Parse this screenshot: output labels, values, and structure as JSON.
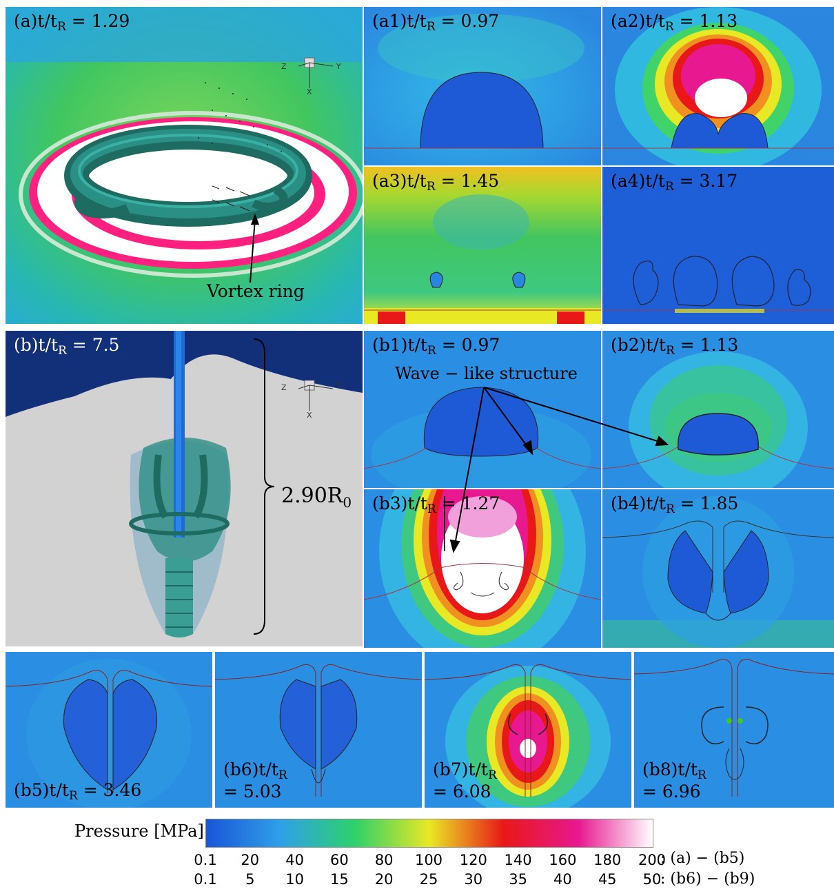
{
  "panels": {
    "a": {
      "prefix": "(a)",
      "tval": "1.29"
    },
    "a1": {
      "prefix": "(a1)",
      "tval": "0.97"
    },
    "a2": {
      "prefix": "(a2)",
      "tval": "1.13"
    },
    "a3": {
      "prefix": "(a3)",
      "tval": "1.45"
    },
    "a4": {
      "prefix": "(a4)",
      "tval": "3.17"
    },
    "b": {
      "prefix": "(b)",
      "tval": "7.5"
    },
    "b1": {
      "prefix": "(b1)",
      "tval": "0.97"
    },
    "b2": {
      "prefix": "(b2)",
      "tval": "1.13"
    },
    "b3": {
      "prefix": "(b3)",
      "tval": "1.27"
    },
    "b4": {
      "prefix": "(b4)",
      "tval": "1.85"
    },
    "b5": {
      "prefix": "(b5)",
      "tval": "3.46"
    },
    "b6": {
      "prefix": "(b6)",
      "tval": "5.03"
    },
    "b7": {
      "prefix": "(b7)",
      "tval": "6.08"
    },
    "b8": {
      "prefix": "(b8)",
      "tval": "6.96"
    }
  },
  "time_symbol": {
    "t": "t/t",
    "sub": "R",
    "eq": " = "
  },
  "annotations": {
    "vortex_ring": "Vortex ring",
    "wave_like": "Wave − like structure",
    "height": "2.90R",
    "height_sub": "0"
  },
  "axes": {
    "z": "Z",
    "y": "Y",
    "x": "X"
  },
  "colorbar": {
    "title": "Pressure [MPa]",
    "ticks_row1": [
      "0.1",
      "20",
      "40",
      "60",
      "80",
      "100",
      "120",
      "140",
      "160",
      "180",
      "200"
    ],
    "ticks_row2": [
      "0.1",
      "5",
      "10",
      "15",
      "20",
      "25",
      "30",
      "35",
      "40",
      "45",
      "50"
    ],
    "range1": ": (a) − (b5)",
    "range2": ": (b6) − (b9)",
    "colors": [
      "#1a55d8",
      "#2fa0e8",
      "#2ed16a",
      "#e8e824",
      "#e81818",
      "#e81890",
      "#ffffff"
    ]
  }
}
